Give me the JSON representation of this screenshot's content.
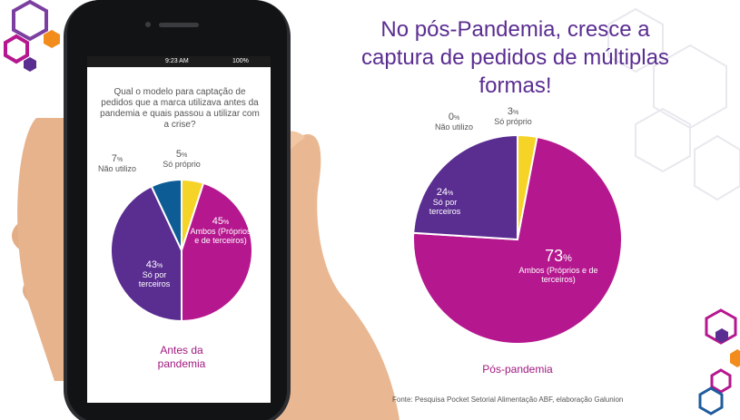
{
  "phone": {
    "status_time": "9:23 AM",
    "status_battery": "100%",
    "question": "Qual o modelo para captação de pedidos que a marca utilizava antes da pandemia e quais passou a utilizar com a crise?"
  },
  "title": "No pós-Pandemia, cresce a captura de pedidos de múltiplas formas!",
  "source": "Fonte: Pesquisa Pocket Setorial Alimentação ABF, elaboração Galunion",
  "colors": {
    "ambos": "#b5178f",
    "terceiros": "#5a2d91",
    "nao_utilizo": "#0d5c96",
    "proprio": "#f5d327",
    "title": "#5a2d91",
    "caption": "#a0197f"
  },
  "chart_data": [
    {
      "type": "pie",
      "title": "Antes da pandemia",
      "categories": [
        "Ambos (Próprios e de terceiros)",
        "Só por terceiros",
        "Não utilizo",
        "Só próprio"
      ],
      "values": [
        45,
        43,
        7,
        5
      ],
      "labels": [
        {
          "pct": "45",
          "cat": "Ambos (Próprios e de terceiros)"
        },
        {
          "pct": "43",
          "cat": "Só por terceiros"
        },
        {
          "pct": "7",
          "cat": "Não utilizo"
        },
        {
          "pct": "5",
          "cat": "Só próprio"
        }
      ]
    },
    {
      "type": "pie",
      "title": "Pós-pandemia",
      "categories": [
        "Ambos (Próprios e de terceiros)",
        "Só por terceiros",
        "Não utilizo",
        "Só próprio"
      ],
      "values": [
        73,
        24,
        0,
        3
      ],
      "labels": [
        {
          "pct": "73",
          "cat": "Ambos (Próprios e de terceiros)"
        },
        {
          "pct": "24",
          "cat": "Só por terceiros"
        },
        {
          "pct": "0",
          "cat": "Não utilizo"
        },
        {
          "pct": "3",
          "cat": "Só próprio"
        }
      ]
    }
  ]
}
